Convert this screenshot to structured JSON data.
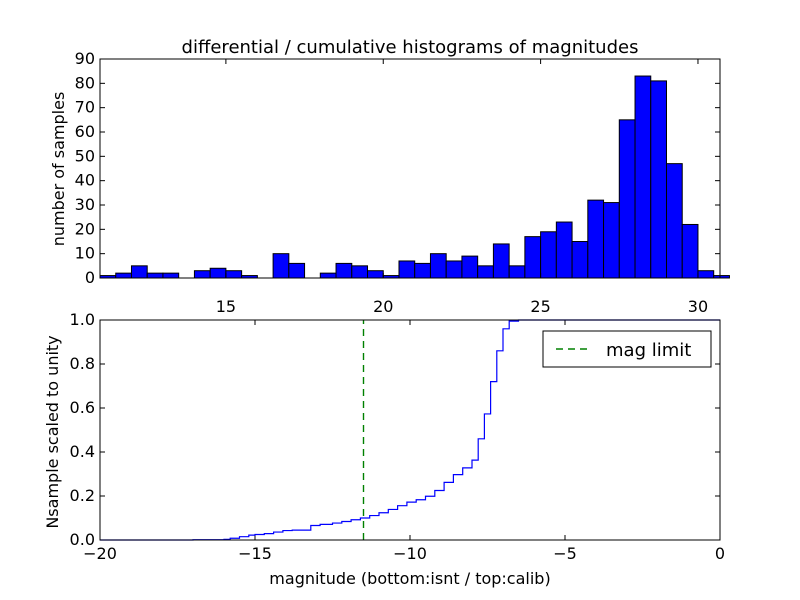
{
  "chart_data": [
    {
      "type": "bar",
      "title": "differential / cumulative histograms of magnitudes",
      "xlabel": "",
      "ylabel": "number of samples",
      "xlim": [
        11.0,
        30.7
      ],
      "ylim": [
        0,
        90
      ],
      "xticks": [
        15,
        20,
        25,
        30
      ],
      "yticks": [
        0,
        10,
        20,
        30,
        40,
        50,
        60,
        70,
        80,
        90
      ],
      "xtick_position": "top-of-lower-axes",
      "bar_color": "#0000ff",
      "bin_width": 0.5,
      "bins_start": [
        11.0,
        11.5,
        12.0,
        12.5,
        13.0,
        13.5,
        14.0,
        14.5,
        15.0,
        15.5,
        16.0,
        16.5,
        17.0,
        17.5,
        18.0,
        18.5,
        19.0,
        19.5,
        20.0,
        20.5,
        21.0,
        21.5,
        22.0,
        22.5,
        23.0,
        23.5,
        24.0,
        24.5,
        25.0,
        25.5,
        26.0,
        26.5,
        27.0,
        27.5,
        28.0,
        28.5,
        29.0,
        29.5,
        30.0,
        30.5
      ],
      "values": [
        1,
        2,
        5,
        2,
        2,
        0,
        3,
        4,
        3,
        1,
        0,
        10,
        6,
        0,
        2,
        6,
        5,
        3,
        1,
        7,
        6,
        10,
        7,
        9,
        5,
        14,
        5,
        17,
        19,
        23,
        15,
        32,
        31,
        65,
        83,
        81,
        47,
        22,
        3,
        1
      ]
    },
    {
      "type": "line",
      "title": "",
      "xlabel": "magnitude (bottom:isnt / top:calib)",
      "ylabel": "Nsample scaled to unity",
      "xlim": [
        -20,
        0
      ],
      "ylim": [
        0.0,
        1.0
      ],
      "xticks": [
        -20,
        -15,
        -10,
        -5,
        0
      ],
      "xtick_labels": [
        "−20",
        "−15",
        "−10",
        "−5",
        "0"
      ],
      "yticks": [
        0.0,
        0.2,
        0.4,
        0.6,
        0.8,
        1.0
      ],
      "ytick_labels": [
        "0.0",
        "0.2",
        "0.4",
        "0.6",
        "0.8",
        "1.0"
      ],
      "series": [
        {
          "color": "#0000ff",
          "drawstyle": "steps",
          "x": [
            -20.0,
            -17.0,
            -16.0,
            -15.8,
            -15.5,
            -15.2,
            -15.0,
            -14.7,
            -14.4,
            -14.1,
            -13.8,
            -13.2,
            -12.9,
            -12.5,
            -12.2,
            -11.9,
            -11.6,
            -11.3,
            -11.0,
            -10.7,
            -10.4,
            -10.1,
            -9.8,
            -9.5,
            -9.2,
            -8.9,
            -8.6,
            -8.3,
            -8.0,
            -7.8,
            -7.6,
            -7.4,
            -7.2,
            -7.0,
            -6.8,
            -6.5,
            0.0
          ],
          "y": [
            0.0,
            0.001,
            0.003,
            0.008,
            0.015,
            0.022,
            0.025,
            0.029,
            0.036,
            0.043,
            0.045,
            0.066,
            0.071,
            0.077,
            0.084,
            0.092,
            0.1,
            0.111,
            0.124,
            0.139,
            0.156,
            0.172,
            0.183,
            0.199,
            0.225,
            0.262,
            0.297,
            0.328,
            0.363,
            0.46,
            0.573,
            0.72,
            0.86,
            0.96,
            0.995,
            1.0,
            1.0
          ]
        },
        {
          "name": "mag limit",
          "color": "#008000",
          "linestyle": "dashed",
          "x": [
            -11.5,
            -11.5
          ],
          "y": [
            0.0,
            1.0
          ]
        }
      ],
      "legend": {
        "position": "top-right",
        "label": "mag limit"
      }
    }
  ]
}
